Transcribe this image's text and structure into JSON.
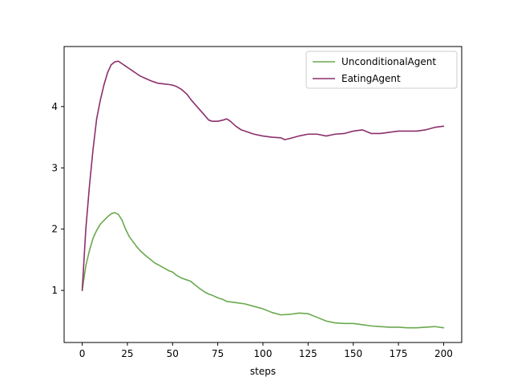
{
  "chart_data": {
    "type": "line",
    "title": "",
    "xlabel": "steps",
    "ylabel": "",
    "xlim": [
      -10,
      210
    ],
    "ylim": [
      0.15,
      4.98
    ],
    "x_ticks": [
      0,
      25,
      50,
      75,
      100,
      125,
      150,
      175,
      200
    ],
    "y_ticks": [
      1,
      2,
      3,
      4
    ],
    "grid": false,
    "legend_position": "upper right",
    "series": [
      {
        "name": "UnconditionalAgent",
        "color": "#6aa84f",
        "x": [
          0,
          2,
          4,
          6,
          8,
          10,
          12,
          14,
          16,
          18,
          20,
          22,
          24,
          26,
          28,
          30,
          32,
          35,
          38,
          40,
          42,
          45,
          48,
          50,
          52,
          55,
          58,
          60,
          62,
          65,
          68,
          70,
          72,
          75,
          78,
          80,
          85,
          90,
          95,
          100,
          105,
          110,
          115,
          120,
          125,
          130,
          135,
          140,
          145,
          150,
          155,
          160,
          165,
          170,
          175,
          180,
          185,
          190,
          195,
          200
        ],
        "y": [
          1.0,
          1.4,
          1.65,
          1.85,
          1.98,
          2.08,
          2.14,
          2.2,
          2.25,
          2.27,
          2.24,
          2.15,
          2.0,
          1.88,
          1.8,
          1.72,
          1.65,
          1.57,
          1.5,
          1.45,
          1.42,
          1.37,
          1.32,
          1.3,
          1.25,
          1.2,
          1.17,
          1.15,
          1.1,
          1.03,
          0.97,
          0.94,
          0.92,
          0.88,
          0.85,
          0.82,
          0.8,
          0.78,
          0.74,
          0.7,
          0.64,
          0.6,
          0.61,
          0.63,
          0.62,
          0.56,
          0.5,
          0.47,
          0.46,
          0.46,
          0.44,
          0.42,
          0.41,
          0.4,
          0.4,
          0.39,
          0.39,
          0.4,
          0.41,
          0.39
        ]
      },
      {
        "name": "EatingAgent",
        "color": "#8b2f6b",
        "x": [
          0,
          2,
          4,
          6,
          8,
          10,
          12,
          14,
          16,
          18,
          20,
          22,
          24,
          26,
          28,
          30,
          32,
          35,
          38,
          40,
          42,
          45,
          48,
          50,
          52,
          55,
          58,
          60,
          62,
          65,
          68,
          70,
          72,
          75,
          78,
          80,
          82,
          85,
          88,
          90,
          95,
          100,
          105,
          110,
          112,
          115,
          120,
          125,
          130,
          135,
          140,
          145,
          150,
          155,
          160,
          165,
          170,
          175,
          180,
          185,
          190,
          195,
          200
        ],
        "y": [
          1.0,
          2.0,
          2.7,
          3.3,
          3.8,
          4.1,
          4.35,
          4.55,
          4.68,
          4.73,
          4.74,
          4.7,
          4.66,
          4.62,
          4.58,
          4.54,
          4.5,
          4.46,
          4.42,
          4.4,
          4.38,
          4.37,
          4.36,
          4.35,
          4.33,
          4.28,
          4.2,
          4.12,
          4.05,
          3.95,
          3.85,
          3.78,
          3.76,
          3.76,
          3.78,
          3.8,
          3.76,
          3.68,
          3.62,
          3.6,
          3.55,
          3.52,
          3.5,
          3.49,
          3.46,
          3.48,
          3.52,
          3.55,
          3.55,
          3.52,
          3.55,
          3.56,
          3.6,
          3.62,
          3.56,
          3.56,
          3.58,
          3.6,
          3.6,
          3.6,
          3.62,
          3.66,
          3.68
        ]
      }
    ]
  }
}
